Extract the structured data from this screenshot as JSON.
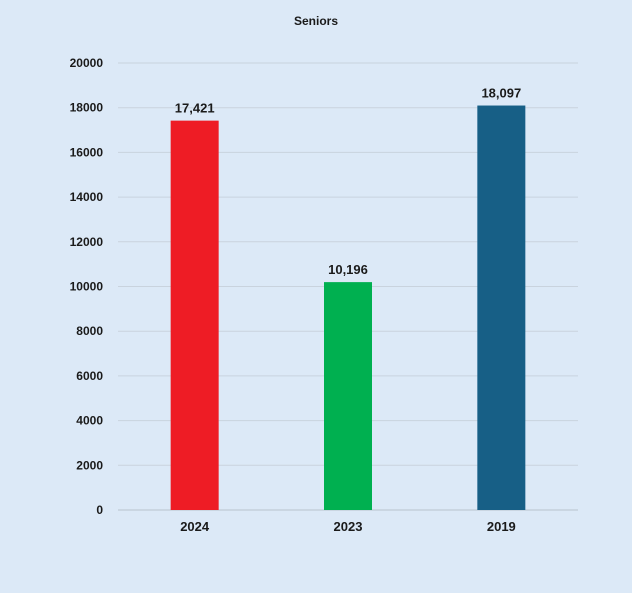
{
  "chart_data": {
    "type": "bar",
    "title": "Seniors",
    "xlabel": "",
    "ylabel": "",
    "categories": [
      "2024",
      "2023",
      "2019"
    ],
    "values": [
      17421,
      10196,
      18097
    ],
    "data_labels": [
      "17,421",
      "10,196",
      "18,097"
    ],
    "colors": [
      "#ee1c25",
      "#00b050",
      "#175f86"
    ],
    "ylim": [
      0,
      20000
    ],
    "yticks": [
      0,
      2000,
      4000,
      6000,
      8000,
      10000,
      12000,
      14000,
      16000,
      18000,
      20000
    ],
    "ytick_labels": [
      "0",
      "2000",
      "4000",
      "6000",
      "8000",
      "10000",
      "12000",
      "14000",
      "16000",
      "18000",
      "20000"
    ],
    "grid": true,
    "legend": "none"
  }
}
